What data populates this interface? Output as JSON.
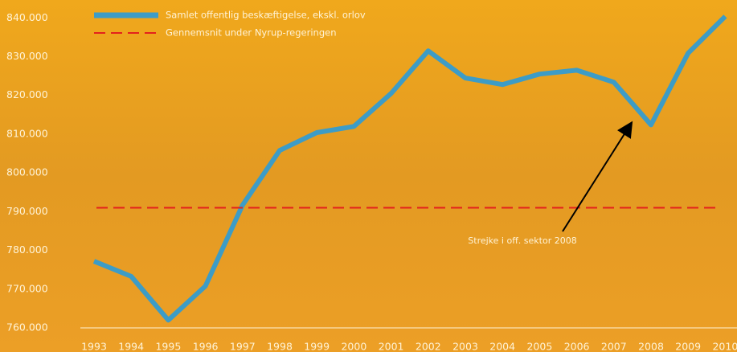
{
  "chart_data": {
    "type": "line",
    "categories": [
      "1993",
      "1994",
      "1995",
      "1996",
      "1997",
      "1998",
      "1999",
      "2000",
      "2001",
      "2002",
      "2003",
      "2004",
      "2005",
      "2006",
      "2007",
      "2008",
      "2009",
      "2010"
    ],
    "series": [
      {
        "name": "Samlet offentlig beskæftigelse, ekskl. orlov",
        "color": "#3d9cc6",
        "values": [
          777200,
          773300,
          762000,
          770800,
          791700,
          805800,
          810400,
          812000,
          820500,
          831500,
          824500,
          822800,
          825500,
          826500,
          823400,
          812400,
          830900,
          840400
        ]
      },
      {
        "name": "Gennemsnit under Nyrup-regeringen",
        "color": "#e3221c",
        "dashed": true,
        "value": 791000
      }
    ],
    "annotation": "Strejke i off. sektor 2008",
    "ylim": [
      760000,
      844000
    ],
    "yticks": [
      {
        "value": 760000,
        "label": "760.000"
      },
      {
        "value": 770000,
        "label": "770.000"
      },
      {
        "value": 780000,
        "label": "780.000"
      },
      {
        "value": 790000,
        "label": "790.000"
      },
      {
        "value": 800000,
        "label": "800.000"
      },
      {
        "value": 810000,
        "label": "810.000"
      },
      {
        "value": 820000,
        "label": "820.000"
      },
      {
        "value": 830000,
        "label": "830.000"
      },
      {
        "value": 840000,
        "label": "840.000"
      }
    ],
    "grid": false
  }
}
